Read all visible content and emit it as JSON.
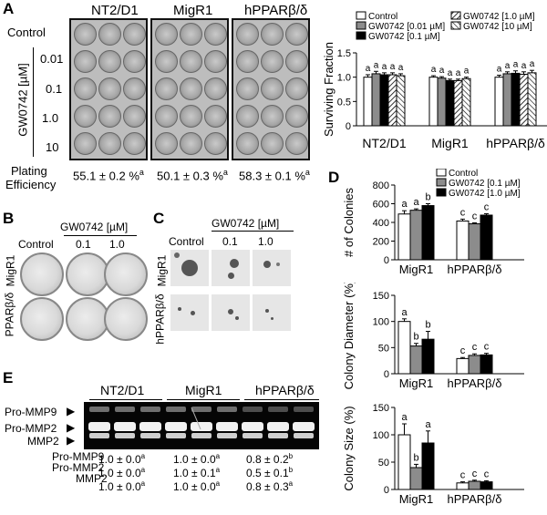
{
  "panels": {
    "a": "A",
    "b": "B",
    "c": "C",
    "d": "D",
    "e": "E"
  },
  "panelA": {
    "col_headers": [
      "NT2/D1",
      "MigR1",
      "hPPARβ/δ"
    ],
    "row_labels": [
      "Control",
      "0.01",
      "0.1",
      "1.0",
      "10"
    ],
    "dose_axis_label": "GW0742 [µM]",
    "plating_label_1": "Plating",
    "plating_label_2": "Efficiency",
    "plating_values": [
      "55.1 ± 0.2 %",
      "50.1 ± 0.3 %",
      "58.3 ± 0.1 %"
    ],
    "plating_sup": [
      "a",
      "a",
      "a"
    ]
  },
  "panelB": {
    "header": "GW0742 [µM]",
    "col_labels": [
      "Control",
      "0.1",
      "1.0"
    ],
    "row_labels": [
      "MigR1",
      "PPARβ/δ"
    ]
  },
  "panelC": {
    "header": "GW0742 [µM]",
    "col_labels": [
      "Control",
      "0.1",
      "1.0"
    ],
    "row_labels": [
      "MigR1",
      "hPPARβ/δ"
    ]
  },
  "panelE": {
    "groups": [
      "NT2/D1",
      "MigR1",
      "hPPARβ/δ"
    ],
    "band_labels": [
      "Pro-MMP9",
      "Pro-MMP2",
      "MMP2"
    ],
    "quant_labels": [
      "Pro-MMP9",
      "Pro-MMP2",
      "MMP2"
    ],
    "quant": [
      [
        "1.0 ± 0.0",
        "1.0 ± 0.0",
        "0.8 ± 0.2"
      ],
      [
        "1.0 ± 0.0",
        "1.0 ± 0.1",
        "0.5 ± 0.1"
      ],
      [
        "1.0 ± 0.0",
        "1.0 ± 0.0",
        "0.8 ± 0.3"
      ]
    ],
    "quant_sup": [
      [
        "a",
        "a",
        "b"
      ],
      [
        "a",
        "a",
        "b"
      ],
      [
        "a",
        "a",
        "a"
      ]
    ]
  },
  "chart_data": [
    {
      "id": "surviving-fraction",
      "type": "bar",
      "ylabel": "Surviving Fraction",
      "ylim": [
        0,
        1.5
      ],
      "yticks": [
        "0",
        "0.5",
        "1.0",
        "1.5"
      ],
      "categories": [
        "NT2/D1",
        "MigR1",
        "hPPARβ/δ"
      ],
      "legend": [
        "Control",
        "GW0742 [0.01 µM]",
        "GW0742 [0.1 µM]",
        "GW0742 [1.0 µM]",
        "GW0742 [10 µM]"
      ],
      "series": [
        {
          "name": "Control",
          "values": [
            1.0,
            1.0,
            1.0
          ],
          "errors": [
            0.05,
            0.03,
            0.04
          ],
          "letters": [
            "a",
            "a",
            "a"
          ]
        },
        {
          "name": "GW0742 [0.01 µM]",
          "values": [
            1.07,
            0.98,
            1.07
          ],
          "errors": [
            0.05,
            0.03,
            0.04
          ],
          "letters": [
            "a",
            "a",
            "a"
          ]
        },
        {
          "name": "GW0742 [0.1 µM]",
          "values": [
            1.05,
            0.93,
            1.08
          ],
          "errors": [
            0.04,
            0.03,
            0.05
          ],
          "letters": [
            "a",
            "a",
            "a"
          ]
        },
        {
          "name": "GW0742 [1.0 µM]",
          "values": [
            1.05,
            0.93,
            1.06
          ],
          "errors": [
            0.04,
            0.03,
            0.05
          ],
          "letters": [
            "a",
            "a",
            "a"
          ]
        },
        {
          "name": "GW0742 [10 µM]",
          "values": [
            1.03,
            0.97,
            1.09
          ],
          "errors": [
            0.04,
            0.03,
            0.05
          ],
          "letters": [
            "a",
            "a",
            "a"
          ]
        }
      ]
    },
    {
      "id": "colonies",
      "type": "bar",
      "ylabel": "# of Colonies",
      "ylim": [
        0,
        800
      ],
      "yticks": [
        "0",
        "200",
        "400",
        "600",
        "800"
      ],
      "categories": [
        "MigR1",
        "hPPARβ/δ"
      ],
      "legend": [
        "Control",
        "GW0742 [0.1 µM]",
        "GW0742 [1.0 µM]"
      ],
      "series": [
        {
          "name": "Control",
          "values": [
            490,
            415
          ],
          "errors": [
            35,
            20
          ],
          "letters": [
            "a",
            "c"
          ]
        },
        {
          "name": "GW0742 [0.1 µM]",
          "values": [
            530,
            385
          ],
          "errors": [
            15,
            10
          ],
          "letters": [
            "a",
            "c"
          ]
        },
        {
          "name": "GW0742 [1.0 µM]",
          "values": [
            580,
            478
          ],
          "errors": [
            20,
            15
          ],
          "letters": [
            "b",
            "c"
          ]
        }
      ]
    },
    {
      "id": "colony-diameter",
      "type": "bar",
      "ylabel": "Colony Diameter (%)",
      "ylim": [
        0,
        150
      ],
      "yticks": [
        "0",
        "50",
        "100",
        "150"
      ],
      "categories": [
        "MigR1",
        "hPPARβ/δ"
      ],
      "series": [
        {
          "name": "Control",
          "values": [
            100,
            29
          ],
          "errors": [
            5,
            2
          ],
          "letters": [
            "a",
            "c"
          ]
        },
        {
          "name": "GW0742 [0.1 µM]",
          "values": [
            53,
            35
          ],
          "errors": [
            5,
            3
          ],
          "letters": [
            "b",
            "c"
          ]
        },
        {
          "name": "GW0742 [1.0 µM]",
          "values": [
            66,
            36
          ],
          "errors": [
            15,
            3
          ],
          "letters": [
            "b",
            "c"
          ]
        }
      ]
    },
    {
      "id": "colony-size",
      "type": "bar",
      "ylabel": "Colony Size (%)",
      "ylim": [
        0,
        150
      ],
      "yticks": [
        "0",
        "50",
        "100",
        "150"
      ],
      "categories": [
        "MigR1",
        "hPPARβ/δ"
      ],
      "series": [
        {
          "name": "Control",
          "values": [
            100,
            12
          ],
          "errors": [
            20,
            2
          ],
          "letters": [
            "a",
            "c"
          ]
        },
        {
          "name": "GW0742 [0.1 µM]",
          "values": [
            40,
            15
          ],
          "errors": [
            6,
            2
          ],
          "letters": [
            "b",
            "c"
          ]
        },
        {
          "name": "GW0742 [1.0 µM]",
          "values": [
            85,
            14
          ],
          "errors": [
            22,
            2
          ],
          "letters": [
            "a",
            "c"
          ]
        }
      ]
    }
  ]
}
